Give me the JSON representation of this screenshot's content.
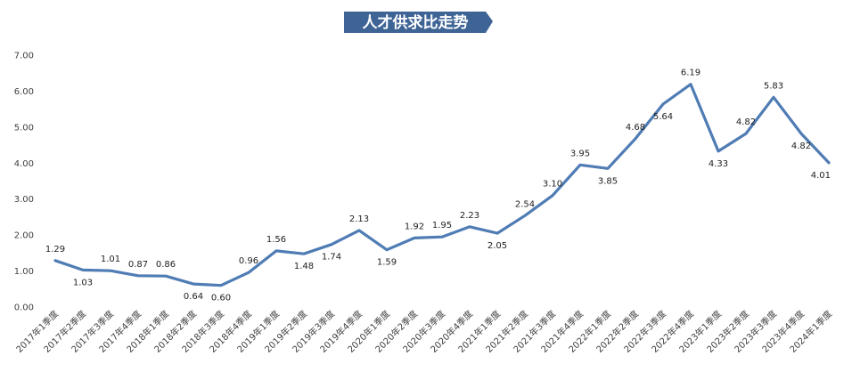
{
  "chart_data": {
    "type": "line",
    "title": "人才供求比走势",
    "categories": [
      "2017年1季度",
      "2017年2季度",
      "2017年3季度",
      "2017年4季度",
      "2018年1季度",
      "2018年2季度",
      "2018年3季度",
      "2018年4季度",
      "2019年1季度",
      "2019年2季度",
      "2019年3季度",
      "2019年4季度",
      "2020年1季度",
      "2020年2季度",
      "2020年3季度",
      "2020年4季度",
      "2021年1季度",
      "2021年2季度",
      "2021年3季度",
      "2021年4季度",
      "2022年1季度",
      "2022年2季度",
      "2022年3季度",
      "2022年4季度",
      "2023年1季度",
      "2023年2季度",
      "2023年3季度",
      "2023年4季度",
      "2024年1季度"
    ],
    "values": [
      1.29,
      1.03,
      1.01,
      0.87,
      0.86,
      0.64,
      0.6,
      0.96,
      1.56,
      1.48,
      1.74,
      2.13,
      1.59,
      1.92,
      1.95,
      2.23,
      2.05,
      2.54,
      3.1,
      3.95,
      3.85,
      4.68,
      5.64,
      6.19,
      4.33,
      4.82,
      5.83,
      4.82,
      4.01
    ],
    "label_position": [
      "above",
      "below",
      "above",
      "above",
      "above",
      "below",
      "below",
      "above",
      "above",
      "below",
      "below",
      "above",
      "below",
      "above",
      "above",
      "above",
      "below",
      "above",
      "above",
      "above",
      "below",
      "above",
      "below",
      "above",
      "below",
      "above",
      "above",
      "below",
      "below"
    ],
    "y_ticks": [
      "0.00",
      "1.00",
      "2.00",
      "3.00",
      "4.00",
      "5.00",
      "6.00",
      "7.00"
    ],
    "ylim": [
      0,
      7
    ],
    "grid": false,
    "line_color": "#4F7CB4",
    "title_bg_color": "#3E6496",
    "xlabel": "",
    "ylabel": ""
  }
}
